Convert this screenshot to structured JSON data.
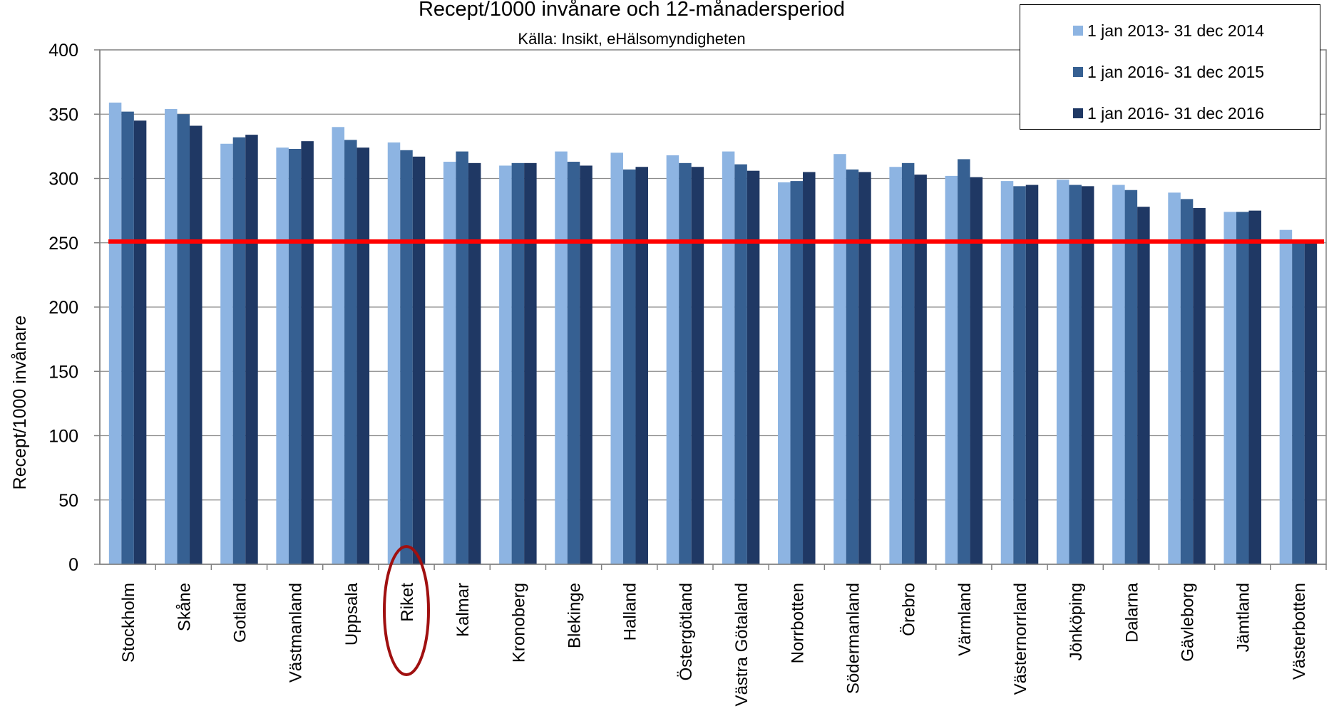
{
  "chart_data": {
    "type": "bar",
    "title": "Recept/1000 invånare och 12-månadersperiod",
    "subtitle": "Källa: Insikt, eHälsomyndigheten",
    "xlabel": "",
    "ylabel": "Recept/1000 invånare",
    "ylim": [
      0,
      400
    ],
    "yticks": [
      0,
      50,
      100,
      150,
      200,
      250,
      300,
      350,
      400
    ],
    "grid": true,
    "legend_position": "top-right",
    "reference_line": {
      "value": 251,
      "color": "#ff0000"
    },
    "highlight": {
      "category": "Riket",
      "shape": "ellipse",
      "color": "#a01010"
    },
    "categories": [
      "Stockholm",
      "Skåne",
      "Gotland",
      "Västmanland",
      "Uppsala",
      "Riket",
      "Kalmar",
      "Kronoberg",
      "Blekinge",
      "Halland",
      "Östergötland",
      "Västra Götaland",
      "Norrbotten",
      "Södermanland",
      "Örebro",
      "Värmland",
      "Västernorrland",
      "Jönköping",
      "Dalarna",
      "Gävleborg",
      "Jämtland",
      "Västerbotten"
    ],
    "series": [
      {
        "name": "1 jan 2013- 31 dec 2014",
        "color": "#8db4e2",
        "values": [
          359,
          354,
          327,
          324,
          340,
          328,
          313,
          310,
          321,
          320,
          318,
          321,
          297,
          319,
          309,
          302,
          298,
          299,
          295,
          289,
          274,
          260
        ]
      },
      {
        "name": "1 jan 2016- 31 dec 2015",
        "color": "#366092",
        "values": [
          352,
          350,
          332,
          323,
          330,
          322,
          321,
          312,
          313,
          307,
          312,
          311,
          298,
          307,
          312,
          315,
          294,
          295,
          291,
          284,
          274,
          252
        ]
      },
      {
        "name": "1 jan 2016- 31 dec 2016",
        "color": "#1f3864",
        "values": [
          345,
          341,
          334,
          329,
          324,
          317,
          312,
          312,
          310,
          309,
          309,
          306,
          305,
          305,
          303,
          301,
          295,
          294,
          278,
          277,
          275,
          250
        ]
      }
    ]
  }
}
